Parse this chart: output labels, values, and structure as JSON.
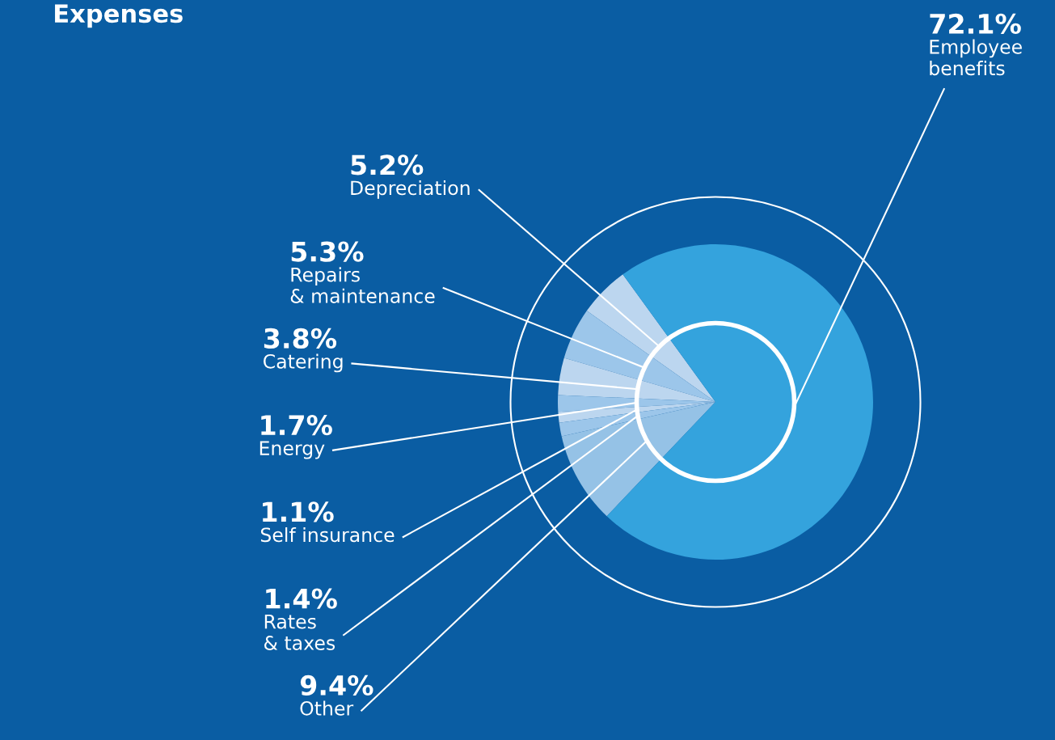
{
  "chart_data": {
    "type": "pie",
    "title": "Expenses",
    "categories": [
      "Depreciation",
      "Repairs\n& maintenance",
      "Catering",
      "Energy",
      "Self insurance",
      "Rates\n& taxes",
      "Other",
      "Employee\nbenefits"
    ],
    "values": [
      5.2,
      5.3,
      3.8,
      1.7,
      1.1,
      1.4,
      9.4,
      72.1
    ],
    "colors": [
      "#bcd6ef",
      "#9cc6ea",
      "#bcd6ef",
      "#9cc6ea",
      "#bcd6ef",
      "#9cc6ea",
      "#95c2e6",
      "#34a3dd"
    ],
    "value_labels": [
      "5.2%",
      "5.3%",
      "3.8%",
      "1.7%",
      "1.1%",
      "1.4%",
      "9.4%",
      "72.1%"
    ]
  }
}
